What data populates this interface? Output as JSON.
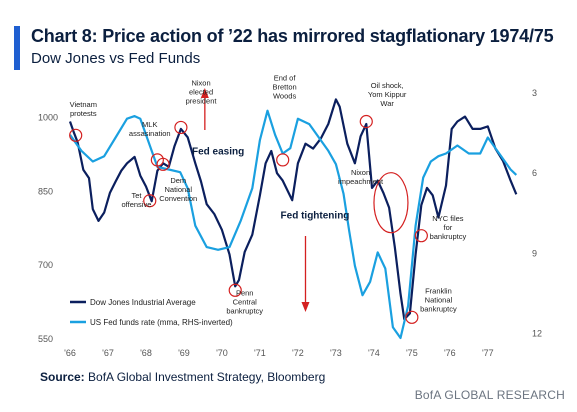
{
  "header": {
    "title": "Chart 8: Price action of ’22 has mirrored stagflationary 1974/75",
    "subtitle": "Dow Jones vs Fed Funds"
  },
  "footer": {
    "source_label": "Source:",
    "source_text": "BofA Global Investment Strategy, Bloomberg",
    "brand": "BofA GLOBAL RESEARCH"
  },
  "colors": {
    "dow": "#0b1f5e",
    "fed": "#1aa0e0",
    "annotation": "#d42020",
    "accent": "#1f5fd1",
    "text": "#0b1f3f"
  },
  "chart_data": {
    "type": "line",
    "xlim": [
      1966,
      1977.9
    ],
    "x_ticks": [
      "'66",
      "'67",
      "'68",
      "'69",
      "'70",
      "'71",
      "'72",
      "'73",
      "'74",
      "'75",
      "'76",
      "'77"
    ],
    "y_left": {
      "ticks": [
        1000,
        850,
        700,
        550
      ],
      "range": [
        550,
        1050
      ]
    },
    "y_right": {
      "ticks": [
        3,
        6,
        9,
        12
      ],
      "range": [
        3,
        12.2
      ],
      "inverted": true
    },
    "legend": {
      "placement": "bottom-left"
    },
    "series": [
      {
        "name": "Dow Jones Industrial Average",
        "axis": "left",
        "x": [
          1966.0,
          1966.1,
          1966.2,
          1966.35,
          1966.5,
          1966.6,
          1966.75,
          1966.9,
          1967.05,
          1967.2,
          1967.35,
          1967.5,
          1967.7,
          1967.85,
          1968.0,
          1968.15,
          1968.3,
          1968.45,
          1968.6,
          1968.75,
          1968.92,
          1969.1,
          1969.3,
          1969.45,
          1969.6,
          1969.8,
          1970.0,
          1970.2,
          1970.35,
          1970.45,
          1970.6,
          1970.8,
          1971.0,
          1971.15,
          1971.3,
          1971.45,
          1971.6,
          1971.85,
          1972.0,
          1972.2,
          1972.4,
          1972.6,
          1972.8,
          1973.0,
          1973.1,
          1973.3,
          1973.5,
          1973.65,
          1973.8,
          1973.95,
          1974.1,
          1974.25,
          1974.4,
          1974.55,
          1974.7,
          1974.8,
          1974.95,
          1975.1,
          1975.25,
          1975.4,
          1975.55,
          1975.7,
          1975.9,
          1976.05,
          1976.2,
          1976.4,
          1976.6,
          1976.8,
          1977.0,
          1977.2,
          1977.4,
          1977.6,
          1977.75
        ],
        "y": [
          990,
          968,
          948,
          892,
          875,
          812,
          788,
          805,
          845,
          868,
          890,
          905,
          918,
          880,
          858,
          828,
          890,
          905,
          898,
          940,
          975,
          958,
          905,
          868,
          822,
          802,
          770,
          720,
          655,
          668,
          725,
          760,
          840,
          905,
          930,
          885,
          870,
          830,
          905,
          945,
          935,
          955,
          985,
          1035,
          1020,
          945,
          905,
          960,
          985,
          855,
          870,
          845,
          815,
          735,
          640,
          588,
          600,
          720,
          820,
          855,
          840,
          795,
          860,
          975,
          990,
          1000,
          975,
          975,
          980,
          935,
          910,
          870,
          842
        ]
      },
      {
        "name": "US Fed funds rate (mma, RHS-inverted)",
        "axis": "right",
        "x": [
          1966.0,
          1966.3,
          1966.6,
          1966.9,
          1967.2,
          1967.5,
          1967.7,
          1967.85,
          1968.0,
          1968.3,
          1968.6,
          1968.9,
          1969.1,
          1969.3,
          1969.6,
          1969.9,
          1970.2,
          1970.5,
          1970.8,
          1971.0,
          1971.2,
          1971.4,
          1971.6,
          1971.8,
          1972.0,
          1972.3,
          1972.6,
          1972.8,
          1973.0,
          1973.2,
          1973.35,
          1973.5,
          1973.7,
          1973.9,
          1974.1,
          1974.3,
          1974.5,
          1974.7,
          1974.9,
          1975.1,
          1975.3,
          1975.5,
          1975.7,
          1975.9,
          1976.2,
          1976.5,
          1976.8,
          1977.0,
          1977.3,
          1977.6,
          1977.75
        ],
        "y": [
          4.6,
          5.2,
          5.6,
          5.4,
          4.7,
          4.0,
          3.9,
          4.0,
          4.6,
          5.8,
          5.9,
          6.0,
          6.6,
          8.0,
          8.8,
          8.9,
          8.8,
          7.8,
          6.6,
          4.8,
          3.7,
          4.6,
          5.3,
          5.1,
          4.0,
          4.2,
          4.8,
          5.2,
          5.7,
          6.8,
          8.2,
          9.5,
          10.6,
          10.1,
          9.0,
          9.6,
          11.8,
          12.2,
          11.0,
          8.0,
          6.2,
          5.6,
          5.4,
          5.3,
          5.0,
          5.3,
          5.3,
          4.7,
          5.3,
          5.9,
          6.1
        ]
      }
    ],
    "annotations": [
      {
        "label": "Vietnam protests",
        "x": 1966.15,
        "y": 962,
        "tx": 1966.35,
        "ty": 1010
      },
      {
        "label": "MLK assasination",
        "x": 1968.3,
        "y": 912,
        "tx": 1968.1,
        "ty": 970
      },
      {
        "label": "Tet offensive",
        "x": 1968.1,
        "y": 829,
        "tx": 1967.75,
        "ty": 825
      },
      {
        "label": "Dem National Convention",
        "x": 1968.45,
        "y": 903,
        "tx": 1968.85,
        "ty": 847
      },
      {
        "label": "Nixon elected president",
        "x": 1968.92,
        "y": 978,
        "tx": 1969.45,
        "ty": 1045
      },
      {
        "label": "End of Bretton Woods",
        "x": 1971.6,
        "y": 912,
        "tx": 1971.65,
        "ty": 1055
      },
      {
        "label": "Oil shock, Yom Kippur War",
        "x": 1973.8,
        "y": 990,
        "tx": 1974.35,
        "ty": 1040
      },
      {
        "label": "Nixon impeachment",
        "x": 1974.45,
        "y": 825,
        "tx": 1973.65,
        "ty": 872
      },
      {
        "label": "Penn Central bankruptcy",
        "x": 1970.35,
        "y": 647,
        "tx": 1970.6,
        "ty": 618
      },
      {
        "label": "NYC files for bankruptcy",
        "x": 1975.25,
        "y": 758,
        "tx": 1975.95,
        "ty": 770
      },
      {
        "label": "Franklin National bankruptcy",
        "x": 1975.0,
        "y": 592,
        "tx": 1975.7,
        "ty": 622
      }
    ],
    "regime_labels": [
      {
        "label": "Fed easing",
        "x": 1969.9,
        "y": 923
      },
      {
        "label": "Fed tightening",
        "x": 1972.45,
        "y": 793
      }
    ]
  }
}
